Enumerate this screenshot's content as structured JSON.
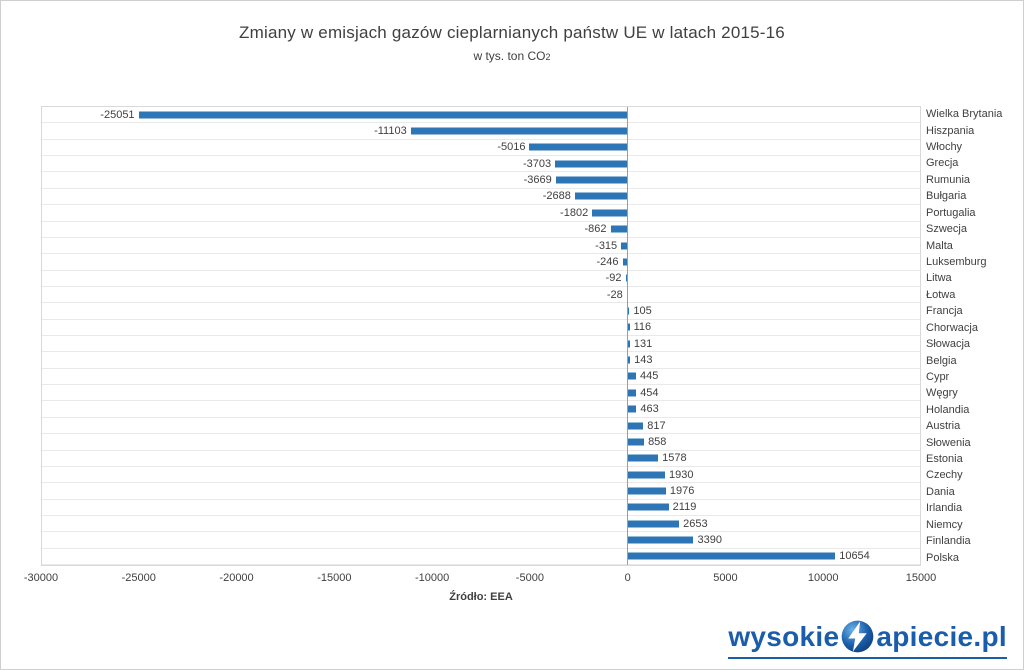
{
  "chart_data": {
    "type": "bar",
    "orientation": "horizontal",
    "title": "Zmiany w emisjach gazów cieplarnianych państw UE w latach 2015-16",
    "subtitle": "w tys. ton CO2",
    "subtitle_parts": [
      "w tys. ton CO",
      "2"
    ],
    "source": "Źródło: EEA",
    "categories": [
      "Wielka Brytania",
      "Hiszpania",
      "Włochy",
      "Grecja",
      "Rumunia",
      "Bułgaria",
      "Portugalia",
      "Szwecja",
      "Malta",
      "Luksemburg",
      "Litwa",
      "Łotwa",
      "Francja",
      "Chorwacja",
      "Słowacja",
      "Belgia",
      "Cypr",
      "Węgry",
      "Holandia",
      "Austria",
      "Słowenia",
      "Estonia",
      "Czechy",
      "Dania",
      "Irlandia",
      "Niemcy",
      "Finlandia",
      "Polska"
    ],
    "values": [
      -25051,
      -11103,
      -5016,
      -3703,
      -3669,
      -2688,
      -1802,
      -862,
      -315,
      -246,
      -92,
      -28,
      105,
      116,
      131,
      143,
      445,
      454,
      463,
      817,
      858,
      1578,
      1930,
      1976,
      2119,
      2653,
      3390,
      10654
    ],
    "xlim": [
      -30000,
      15000
    ],
    "xticks": [
      -30000,
      -25000,
      -20000,
      -15000,
      -10000,
      -5000,
      0,
      5000,
      10000,
      15000
    ],
    "grid": "horizontal-row-lines",
    "legend": "none",
    "value_labels": "at-bar-ends"
  },
  "colors": {
    "bar": "#2E75B6",
    "text": "#404040",
    "grid": "#E9E9E9",
    "logo": "#1A5DAB"
  },
  "logo": {
    "text_left": "wysokie",
    "text_right": "apiecie.pl",
    "icon": "lightning-circle-icon"
  }
}
